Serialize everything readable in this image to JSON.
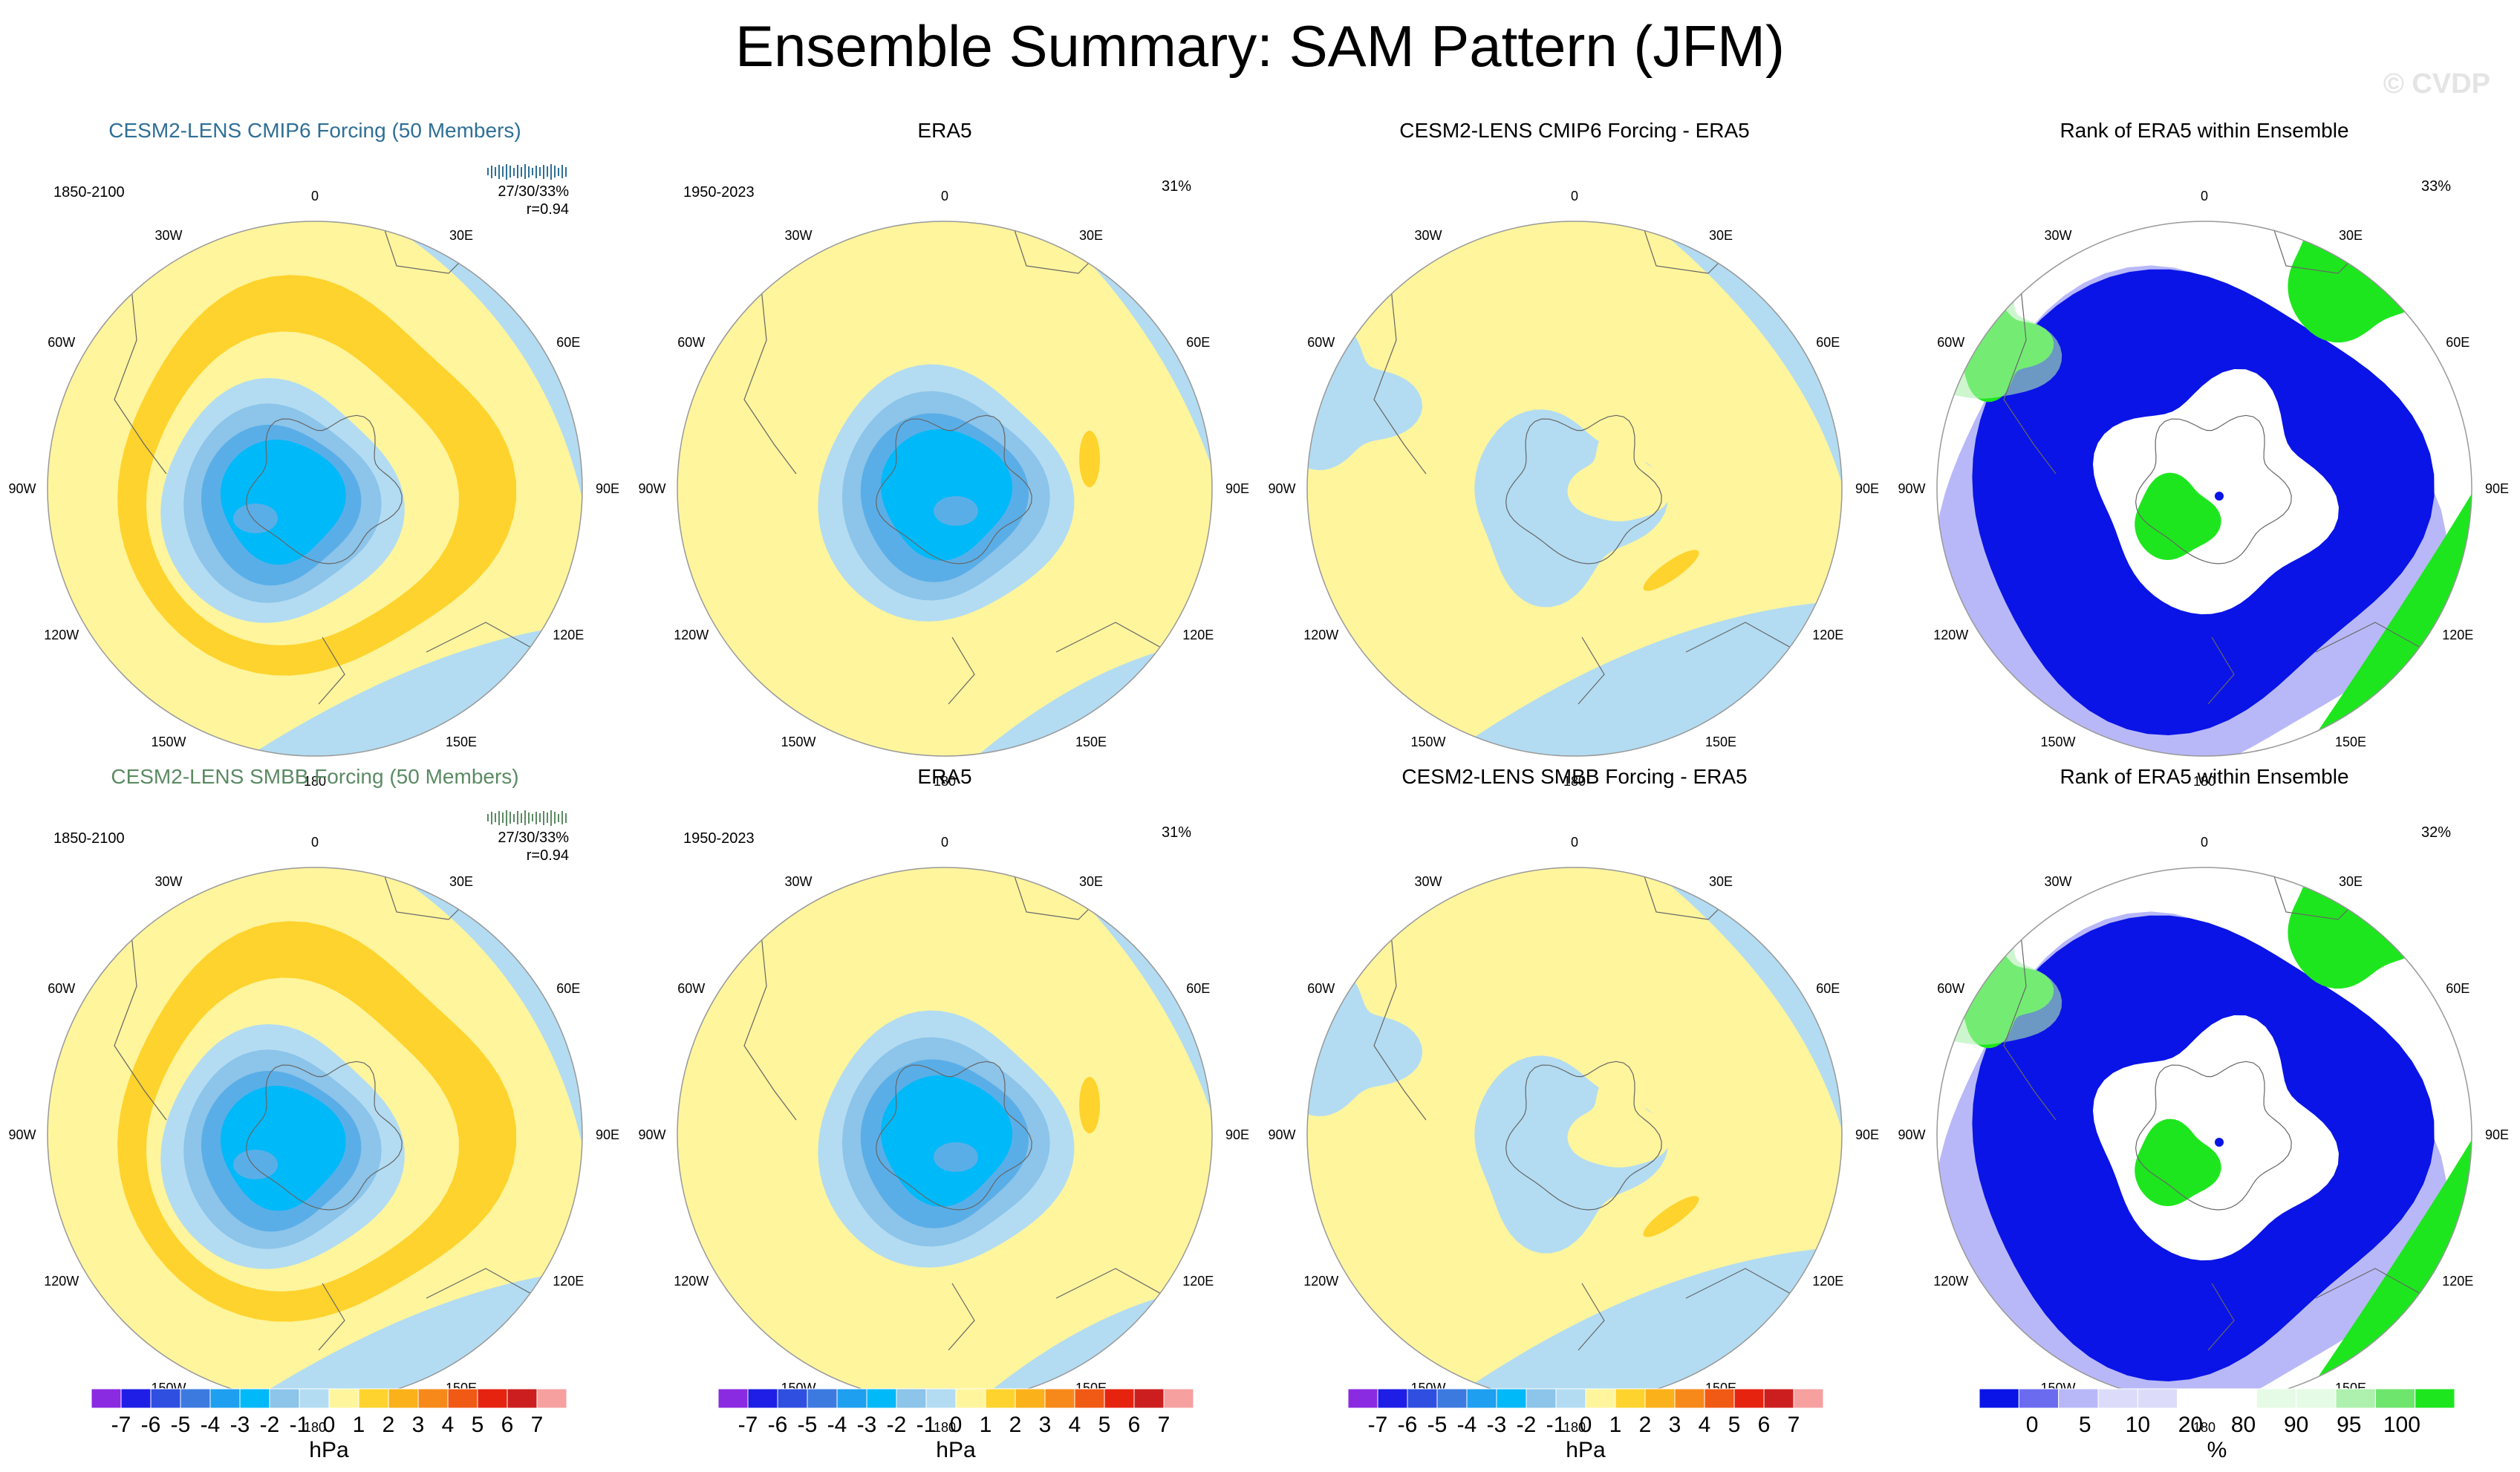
{
  "title": "Ensemble Summary: SAM Pattern (JFM)",
  "watermark": "© CVDP",
  "colors": {
    "neg1": "#b3dcf2",
    "neg2": "#8cc4ea",
    "neg3": "#5aaee7",
    "neg4": "#00b9f9",
    "pos1": "#fff59d",
    "pos2": "#ffd32d",
    "blue": "#0a14e6",
    "lightblue": "#b8b8f8",
    "green": "#1ee61e",
    "lightgreen": "#aef0ae",
    "cmip6": "#2f6f96",
    "smbb": "#5b8a63"
  },
  "lon_labels": [
    "0",
    "30E",
    "60E",
    "90E",
    "120E",
    "150E",
    "180",
    "150W",
    "120W",
    "90W",
    "60W",
    "30W"
  ],
  "panels": [
    {
      "title": "CESM2-LENS CMIP6 Forcing (50 Members)",
      "period": "1850-2100",
      "stat1": "27/30/33%",
      "stat2": "r=0.94",
      "kind": "ens"
    },
    {
      "title": "ERA5",
      "period": "1950-2023",
      "pct": "31%",
      "kind": "obs"
    },
    {
      "title": "CESM2-LENS CMIP6 Forcing - ERA5",
      "kind": "diff"
    },
    {
      "title": "Rank of ERA5 within Ensemble",
      "pct": "33%",
      "kind": "rank"
    },
    {
      "title": "CESM2-LENS SMBB Forcing (50 Members)",
      "period": "1850-2100",
      "stat1": "27/30/33%",
      "stat2": "r=0.94",
      "kind": "ens"
    },
    {
      "title": "ERA5",
      "period": "1950-2023",
      "pct": "31%",
      "kind": "obs"
    },
    {
      "title": "CESM2-LENS SMBB Forcing - ERA5",
      "kind": "diff"
    },
    {
      "title": "Rank of ERA5 within Ensemble",
      "pct": "32%",
      "kind": "rank"
    }
  ],
  "colorbar_hpa": {
    "colors": [
      "#8a2be2",
      "#1e1ee6",
      "#2f4fe0",
      "#3c7ae0",
      "#1e9ff0",
      "#00b9f9",
      "#8cc4ea",
      "#b3dcf2",
      "#fff59d",
      "#ffd32d",
      "#fbb11a",
      "#f7891a",
      "#f05a14",
      "#e6230f",
      "#cc1e1e",
      "#f6a0a0"
    ],
    "labels": [
      "-7",
      "-6",
      "-5",
      "-4",
      "-3",
      "-2",
      "-1",
      "0",
      "1",
      "2",
      "3",
      "4",
      "5",
      "6",
      "7"
    ],
    "unit": "hPa"
  },
  "colorbar_rank": {
    "colors": [
      "#0a14e6",
      "#6b6bf0",
      "#b8b8f8",
      "#dcdcfa",
      "#dcdcfa",
      "#ffffff",
      "#ffffff",
      "#e6fbe6",
      "#e6fbe6",
      "#aef0ae",
      "#6ee66e",
      "#1ee61e"
    ],
    "labels": [
      "0",
      "5",
      "10",
      "20",
      "80",
      "90",
      "95",
      "100"
    ],
    "unit": "%"
  }
}
